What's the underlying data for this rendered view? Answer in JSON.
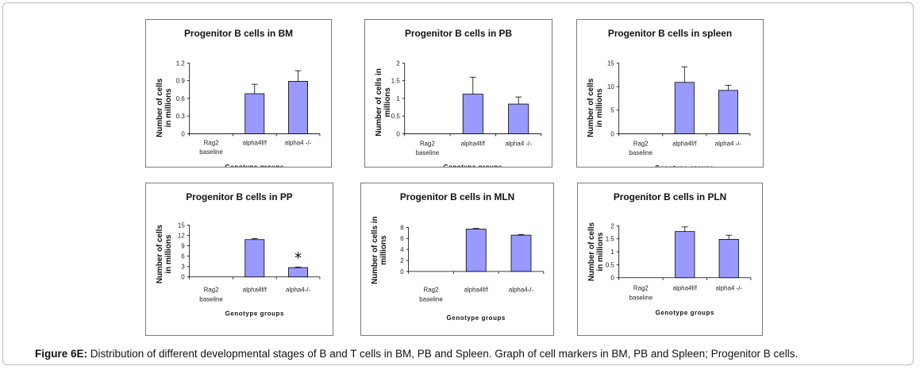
{
  "figure": {
    "caption_label": "Figure 6E:",
    "caption_text": " Distribution of different developmental stages of B and T cells in BM, PB and Spleen. Graph of cell markers in BM, PB and Spleen; Progenitor B cells."
  },
  "chart_data": [
    {
      "type": "bar",
      "title": "Progenitor B cells  in BM",
      "ylabel": [
        "Number of cells",
        "in millions"
      ],
      "xlabel": "Genotype groups",
      "categories": [
        [
          "Rag2",
          "baseline"
        ],
        [
          "alpha4f/f"
        ],
        [
          "alpha4 -/-"
        ]
      ],
      "values": [
        0,
        0.68,
        0.89
      ],
      "errors": [
        0,
        0.16,
        0.18
      ],
      "ylim": [
        0,
        1.2
      ],
      "yticks": [
        0,
        0.3,
        0.6,
        0.9,
        1.2
      ],
      "ytick_labels": [
        "0",
        "0.3",
        "0.6",
        "0.9",
        "1.2"
      ],
      "annotations": []
    },
    {
      "type": "bar",
      "title": "Progenitor B cells  in PB",
      "ylabel": [
        "Number of cells in",
        "millions"
      ],
      "xlabel": "Genotype groups",
      "categories": [
        [
          "Rag2",
          "baseline"
        ],
        [
          "alpha4f/f"
        ],
        [
          "alpha4 -/-"
        ]
      ],
      "values": [
        0,
        1.12,
        0.84
      ],
      "errors": [
        0,
        0.48,
        0.2
      ],
      "ylim": [
        0,
        2
      ],
      "yticks": [
        0,
        0.5,
        1,
        1.5,
        2
      ],
      "ytick_labels": [
        "0",
        "0.5",
        "1",
        "1.5",
        "2"
      ],
      "annotations": []
    },
    {
      "type": "bar",
      "title": "Progenitor B cells  in spleen",
      "ylabel": [
        "Number of cells",
        "in millions"
      ],
      "xlabel": "Genotype groups",
      "categories": [
        [
          "Rag2",
          "baseline"
        ],
        [
          "alpha4f/f"
        ],
        [
          "alpha4 -/-"
        ]
      ],
      "values": [
        0,
        10.9,
        9.2
      ],
      "errors": [
        0,
        3.3,
        1.1
      ],
      "ylim": [
        0,
        15
      ],
      "yticks": [
        0,
        5,
        10,
        15
      ],
      "ytick_labels": [
        "0",
        "5",
        "10",
        "15"
      ],
      "annotations": []
    },
    {
      "type": "bar",
      "title": "Progenitor B cells  in PP",
      "ylabel": [
        "Number of cells",
        "in millions"
      ],
      "xlabel": "Genotype groups",
      "categories": [
        [
          "Rag2",
          "baseline"
        ],
        [
          "alpha4f/f"
        ],
        [
          "alpha4-/-"
        ]
      ],
      "values": [
        0,
        10.8,
        2.7
      ],
      "errors": [
        0,
        0.3,
        0.15
      ],
      "ylim": [
        0,
        15
      ],
      "yticks": [
        0,
        3,
        6,
        9,
        12,
        15
      ],
      "ytick_labels": [
        "0",
        "3",
        "6",
        "9",
        "12",
        "15"
      ],
      "annotations": [
        {
          "category_index": 2,
          "text": "*"
        }
      ]
    },
    {
      "type": "bar",
      "title": "Progenitor B cells  in MLN",
      "ylabel": [
        "Number of cells in",
        "millions"
      ],
      "xlabel": "Genotype groups",
      "categories": [
        [
          "Rag2",
          "baseline"
        ],
        [
          "alpha4f/f"
        ],
        [
          "alpha4-/-"
        ]
      ],
      "values": [
        0,
        7.7,
        6.6
      ],
      "errors": [
        0,
        0.12,
        0.12
      ],
      "ylim": [
        0,
        8
      ],
      "yticks": [
        0,
        2,
        4,
        6,
        8
      ],
      "ytick_labels": [
        "0",
        "2",
        "4",
        "6",
        "8"
      ],
      "annotations": []
    },
    {
      "type": "bar",
      "title": "Progenitor B cells  in PLN",
      "ylabel": [
        "Number of cells",
        "in millions"
      ],
      "xlabel": "Genotype groups",
      "categories": [
        [
          "Rag2",
          "baseline"
        ],
        [
          "alpha4f/f"
        ],
        [
          "alpha4 -/-"
        ]
      ],
      "values": [
        0,
        1.78,
        1.48
      ],
      "errors": [
        0,
        0.18,
        0.16
      ],
      "ylim": [
        0,
        2
      ],
      "yticks": [
        0,
        0.5,
        1,
        1.5,
        2
      ],
      "ytick_labels": [
        "0",
        "0.5",
        "1",
        "1.5",
        "2"
      ],
      "annotations": []
    }
  ]
}
